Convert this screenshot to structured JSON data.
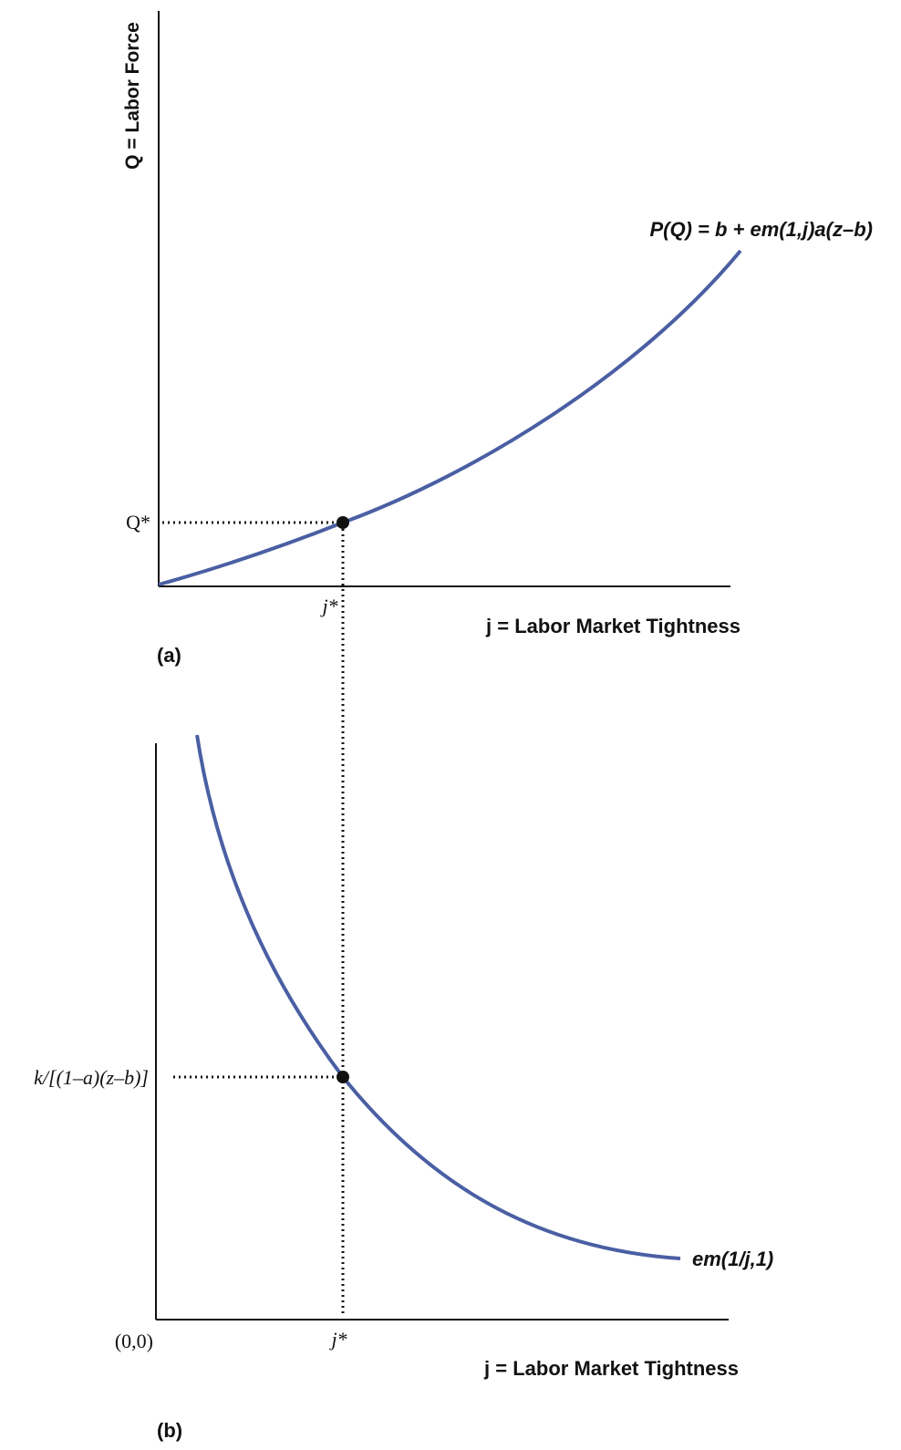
{
  "panel_a": {
    "y_axis_label": "Q = Labor Force",
    "x_axis_label": "j = Labor Market Tightness",
    "curve_label": "P(Q) = b + em(1,j)a(z–b)",
    "y_tick_label": "Q*",
    "x_tick_label": "j*",
    "panel_label": "(a)"
  },
  "panel_b": {
    "x_axis_label": "j = Labor Market Tightness",
    "curve_label": "em(1/j,1)",
    "y_tick_label": "k/[(1–a)(z–b)]",
    "x_tick_label": "j*",
    "origin_label": "(0,0)",
    "panel_label": "(b)"
  },
  "colors": {
    "curve": "#4a5fa3",
    "axis": "#111111",
    "point": "#111111"
  }
}
